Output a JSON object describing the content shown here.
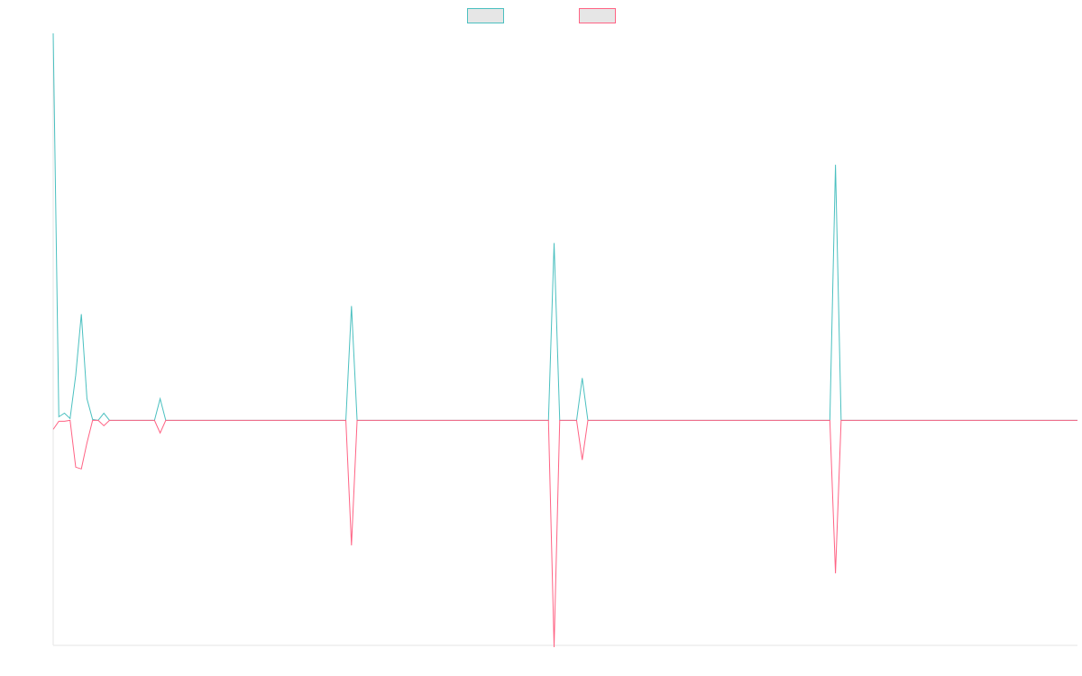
{
  "chart_data": {
    "type": "line",
    "title": "",
    "xlabel": "",
    "ylabel": "",
    "ylim": [
      -250,
      430
    ],
    "x": [
      0,
      1,
      2,
      3,
      4,
      5,
      6,
      7,
      8,
      9,
      10,
      11,
      12,
      13,
      14,
      15,
      16,
      17,
      18,
      19,
      20,
      21,
      22,
      23,
      24,
      25,
      26,
      27,
      28,
      29,
      30,
      31,
      32,
      33,
      34,
      35,
      36,
      37,
      38,
      39,
      40,
      41,
      42,
      43,
      44,
      45,
      46,
      47,
      48,
      49,
      50,
      51,
      52,
      53,
      54,
      55,
      56,
      57,
      58,
      59,
      60,
      61,
      62,
      63,
      64,
      65,
      66,
      67,
      68,
      69,
      70,
      71,
      72,
      73,
      74,
      75,
      76,
      77,
      78,
      79,
      80,
      81,
      82,
      83,
      84,
      85,
      86,
      87,
      88,
      89,
      90,
      91,
      92,
      93,
      94,
      95,
      96,
      97,
      98,
      99,
      100,
      101,
      102,
      103,
      104,
      105,
      106,
      107,
      108,
      109,
      110,
      111,
      112,
      113,
      114,
      115,
      116,
      117,
      118,
      119,
      120,
      121,
      122,
      123,
      124,
      125,
      126,
      127,
      128,
      129,
      130,
      131,
      132,
      133,
      134,
      135,
      136,
      137,
      138,
      139,
      140,
      141,
      142,
      143,
      144,
      145,
      146,
      147,
      148,
      149,
      150,
      151,
      152,
      153,
      154,
      155,
      156,
      157,
      158,
      159,
      160,
      161,
      162,
      163,
      164,
      165,
      166,
      167,
      168,
      169,
      170,
      171,
      172,
      173,
      174,
      175,
      176,
      177,
      178,
      179,
      180,
      181,
      182
    ],
    "series": [
      {
        "color": "#4bc0c0",
        "values": [
          430,
          4,
          8,
          2,
          50,
          118,
          24,
          1,
          0,
          8,
          0,
          0,
          0,
          0,
          0,
          0,
          0,
          0,
          0,
          24,
          0,
          0,
          0,
          0,
          0,
          0,
          0,
          0,
          0,
          0,
          0,
          0,
          0,
          0,
          0,
          0,
          0,
          0,
          0,
          0,
          0,
          0,
          0,
          0,
          0,
          0,
          0,
          0,
          0,
          0,
          0,
          0,
          0,
          127,
          0,
          0,
          0,
          0,
          0,
          0,
          0,
          0,
          0,
          0,
          0,
          0,
          0,
          0,
          0,
          0,
          0,
          0,
          0,
          0,
          0,
          0,
          0,
          0,
          0,
          0,
          0,
          0,
          0,
          0,
          0,
          0,
          0,
          0,
          0,
          197,
          0,
          0,
          0,
          0,
          47,
          0,
          0,
          0,
          0,
          0,
          0,
          0,
          0,
          0,
          0,
          0,
          0,
          0,
          0,
          0,
          0,
          0,
          0,
          0,
          0,
          0,
          0,
          0,
          0,
          0,
          0,
          0,
          0,
          0,
          0,
          0,
          0,
          0,
          0,
          0,
          0,
          0,
          0,
          0,
          0,
          0,
          0,
          0,
          0,
          284,
          0,
          0,
          0,
          0,
          0,
          0,
          0,
          0,
          0,
          0,
          0,
          0,
          0,
          0,
          0,
          0,
          0,
          0,
          0,
          0,
          0,
          0,
          0,
          0,
          0,
          0,
          0,
          0,
          0,
          0,
          0,
          0,
          0,
          0,
          0,
          0,
          0,
          0,
          0,
          0,
          0,
          0,
          0
        ]
      },
      {
        "color": "#ff6384",
        "values": [
          -10,
          -1,
          -1,
          0,
          -52,
          -54,
          -25,
          0,
          0,
          -6,
          0,
          0,
          0,
          0,
          0,
          0,
          0,
          0,
          0,
          -14,
          0,
          0,
          0,
          0,
          0,
          0,
          0,
          0,
          0,
          0,
          0,
          0,
          0,
          0,
          0,
          0,
          0,
          0,
          0,
          0,
          0,
          0,
          0,
          0,
          0,
          0,
          0,
          0,
          0,
          0,
          0,
          0,
          0,
          -139,
          0,
          0,
          0,
          0,
          0,
          0,
          0,
          0,
          0,
          0,
          0,
          0,
          0,
          0,
          0,
          0,
          0,
          0,
          0,
          0,
          0,
          0,
          0,
          0,
          0,
          0,
          0,
          0,
          0,
          0,
          0,
          0,
          0,
          0,
          0,
          -252,
          0,
          0,
          0,
          0,
          -44,
          0,
          0,
          0,
          0,
          0,
          0,
          0,
          0,
          0,
          0,
          0,
          0,
          0,
          0,
          0,
          0,
          0,
          0,
          0,
          0,
          0,
          0,
          0,
          0,
          0,
          0,
          0,
          0,
          0,
          0,
          0,
          0,
          0,
          0,
          0,
          0,
          0,
          0,
          0,
          0,
          0,
          0,
          0,
          0,
          -170,
          0,
          0,
          0,
          0,
          0,
          0,
          0,
          0,
          0,
          0,
          0,
          0,
          0,
          0,
          0,
          0,
          0,
          0,
          0,
          0,
          0,
          0,
          0,
          0,
          0,
          0,
          0,
          0,
          0,
          0,
          0,
          0,
          0,
          0,
          0,
          0,
          0,
          0,
          0,
          0,
          0,
          0,
          0
        ]
      }
    ],
    "legend": {
      "position": "top",
      "entries": [
        {
          "label": "",
          "border": "#4bc0c0",
          "fill": "#e6e6e6"
        },
        {
          "label": "",
          "border": "#ff6384",
          "fill": "#e6e6e6"
        }
      ]
    },
    "grid": false
  }
}
